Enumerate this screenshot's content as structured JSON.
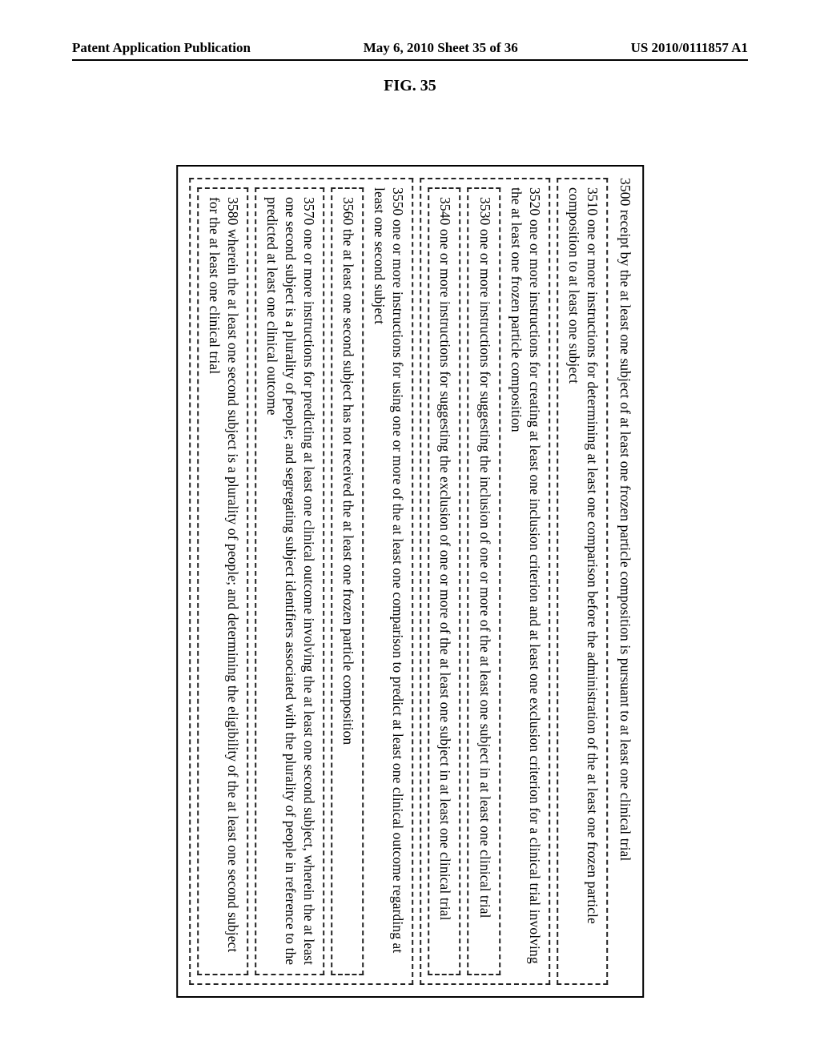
{
  "header": {
    "left": "Patent Application Publication",
    "center": "May 6, 2010  Sheet 35 of 36",
    "right": "US 2010/0111857 A1"
  },
  "figure_label": "FIG. 35",
  "claims": {
    "c3500": "3500 receipt by the at least one subject of at least one frozen particle composition is pursuant to at least one clinical trial",
    "c3510": "3510 one or more instructions for determining at least one comparison before the administration of the at least one frozen particle composition to at least one subject",
    "c3520": "3520 one or more instructions for creating at least one inclusion criterion and at least one exclusion criterion for a clinical trial involving the at least one frozen particle composition",
    "c3530": "3530 one or more instructions for suggesting the inclusion of one or more of the at least one subject in at least one clinical trial",
    "c3540": "3540 one or more instructions for suggesting the exclusion of one or more of the at least one subject in at least one clinical trial",
    "c3550": "3550 one or more instructions for using one or more of the at least one comparison to predict at least one clinical outcome regarding at least one second subject",
    "c3560": "3560 the at least one second subject has not received the at least one frozen particle composition",
    "c3570": "3570 one or more instructions for predicting at least one clinical outcome involving the at least one second subject, wherein the at least one second subject is a plurality of people; and segregating subject identifiers associated with the plurality of people in reference to the predicted at least one clinical outcome",
    "c3580": "3580 wherein the at least one second subject is a plurality of people; and determining the eligibility of the at least one second subject for the at least one clinical trial"
  }
}
